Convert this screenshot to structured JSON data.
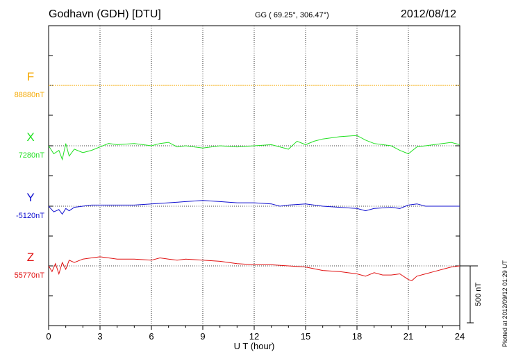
{
  "header": {
    "station": "Godhavn (GDH)  [DTU]",
    "coords": "GG ( 69.25°, 306.47°)",
    "date": "2012/08/12",
    "plotted": "Plotted at 2012/09/12 01:29 UT"
  },
  "chart_data": {
    "type": "line",
    "xlabel": "U T (hour)",
    "xlim": [
      0,
      24
    ],
    "xticks": [
      "0",
      "3",
      "6",
      "9",
      "12",
      "15",
      "18",
      "21",
      "24"
    ],
    "grid": true,
    "units": "nT",
    "scale_bar": {
      "label": "500 nT",
      "value": 500
    },
    "series": [
      {
        "name": "F",
        "baseline_label": "88880nT",
        "baseline": 88880,
        "color": "#f5a800",
        "dotted": true,
        "x": [
          0,
          24
        ],
        "y": [
          88880,
          88880
        ]
      },
      {
        "name": "X",
        "baseline_label": "7280nT",
        "baseline": 7280,
        "color": "#22e022",
        "x": [
          0,
          0.3,
          0.6,
          0.8,
          1.0,
          1.2,
          1.5,
          2,
          2.5,
          3,
          3.5,
          4,
          5,
          6,
          6.5,
          7,
          7.5,
          8,
          9,
          10,
          11,
          12,
          13,
          13.5,
          14,
          14.5,
          15,
          15.5,
          16,
          17,
          18,
          18.5,
          19,
          19.5,
          20,
          20.5,
          21,
          21.5,
          22,
          23,
          23.5,
          24
        ],
        "y": [
          7280,
          7210,
          7240,
          7160,
          7300,
          7190,
          7250,
          7220,
          7240,
          7270,
          7300,
          7290,
          7300,
          7280,
          7300,
          7310,
          7270,
          7280,
          7260,
          7280,
          7270,
          7280,
          7290,
          7270,
          7250,
          7320,
          7290,
          7320,
          7340,
          7360,
          7370,
          7330,
          7300,
          7290,
          7280,
          7240,
          7210,
          7270,
          7280,
          7300,
          7310,
          7290
        ]
      },
      {
        "name": "Y",
        "baseline_label": "-5120nT",
        "baseline": -5120,
        "color": "#1010d0",
        "x": [
          0,
          0.3,
          0.6,
          0.8,
          1.0,
          1.2,
          1.5,
          2,
          2.5,
          3,
          4,
          5,
          6,
          7,
          8,
          9,
          10,
          11,
          12,
          13,
          13.5,
          14,
          15,
          16,
          17,
          18,
          18.5,
          19,
          20,
          20.5,
          21,
          21.5,
          22,
          23,
          24
        ],
        "y": [
          -5120,
          -5170,
          -5150,
          -5190,
          -5140,
          -5160,
          -5130,
          -5120,
          -5110,
          -5110,
          -5110,
          -5110,
          -5100,
          -5090,
          -5080,
          -5070,
          -5080,
          -5090,
          -5090,
          -5100,
          -5120,
          -5110,
          -5100,
          -5120,
          -5130,
          -5140,
          -5160,
          -5140,
          -5130,
          -5140,
          -5110,
          -5100,
          -5120,
          -5120,
          -5120
        ]
      },
      {
        "name": "Z",
        "baseline_label": "55770nT",
        "baseline": 55770,
        "color": "#e01010",
        "x": [
          0,
          0.2,
          0.4,
          0.6,
          0.8,
          1.0,
          1.2,
          1.5,
          2,
          2.5,
          3,
          3.5,
          4,
          5,
          6,
          6.5,
          7,
          7.5,
          8,
          9,
          10,
          11,
          12,
          13,
          14,
          15,
          16,
          17,
          18,
          18.5,
          19,
          19.5,
          20,
          20.5,
          21,
          21.2,
          21.5,
          22,
          22.5,
          23,
          23.5,
          24
        ],
        "y": [
          55770,
          55720,
          55790,
          55700,
          55800,
          55740,
          55820,
          55800,
          55830,
          55840,
          55850,
          55840,
          55830,
          55830,
          55820,
          55840,
          55830,
          55820,
          55830,
          55820,
          55810,
          55790,
          55780,
          55780,
          55770,
          55760,
          55730,
          55720,
          55700,
          55680,
          55710,
          55690,
          55690,
          55700,
          55650,
          55640,
          55680,
          55700,
          55720,
          55740,
          55760,
          55770
        ]
      }
    ]
  }
}
